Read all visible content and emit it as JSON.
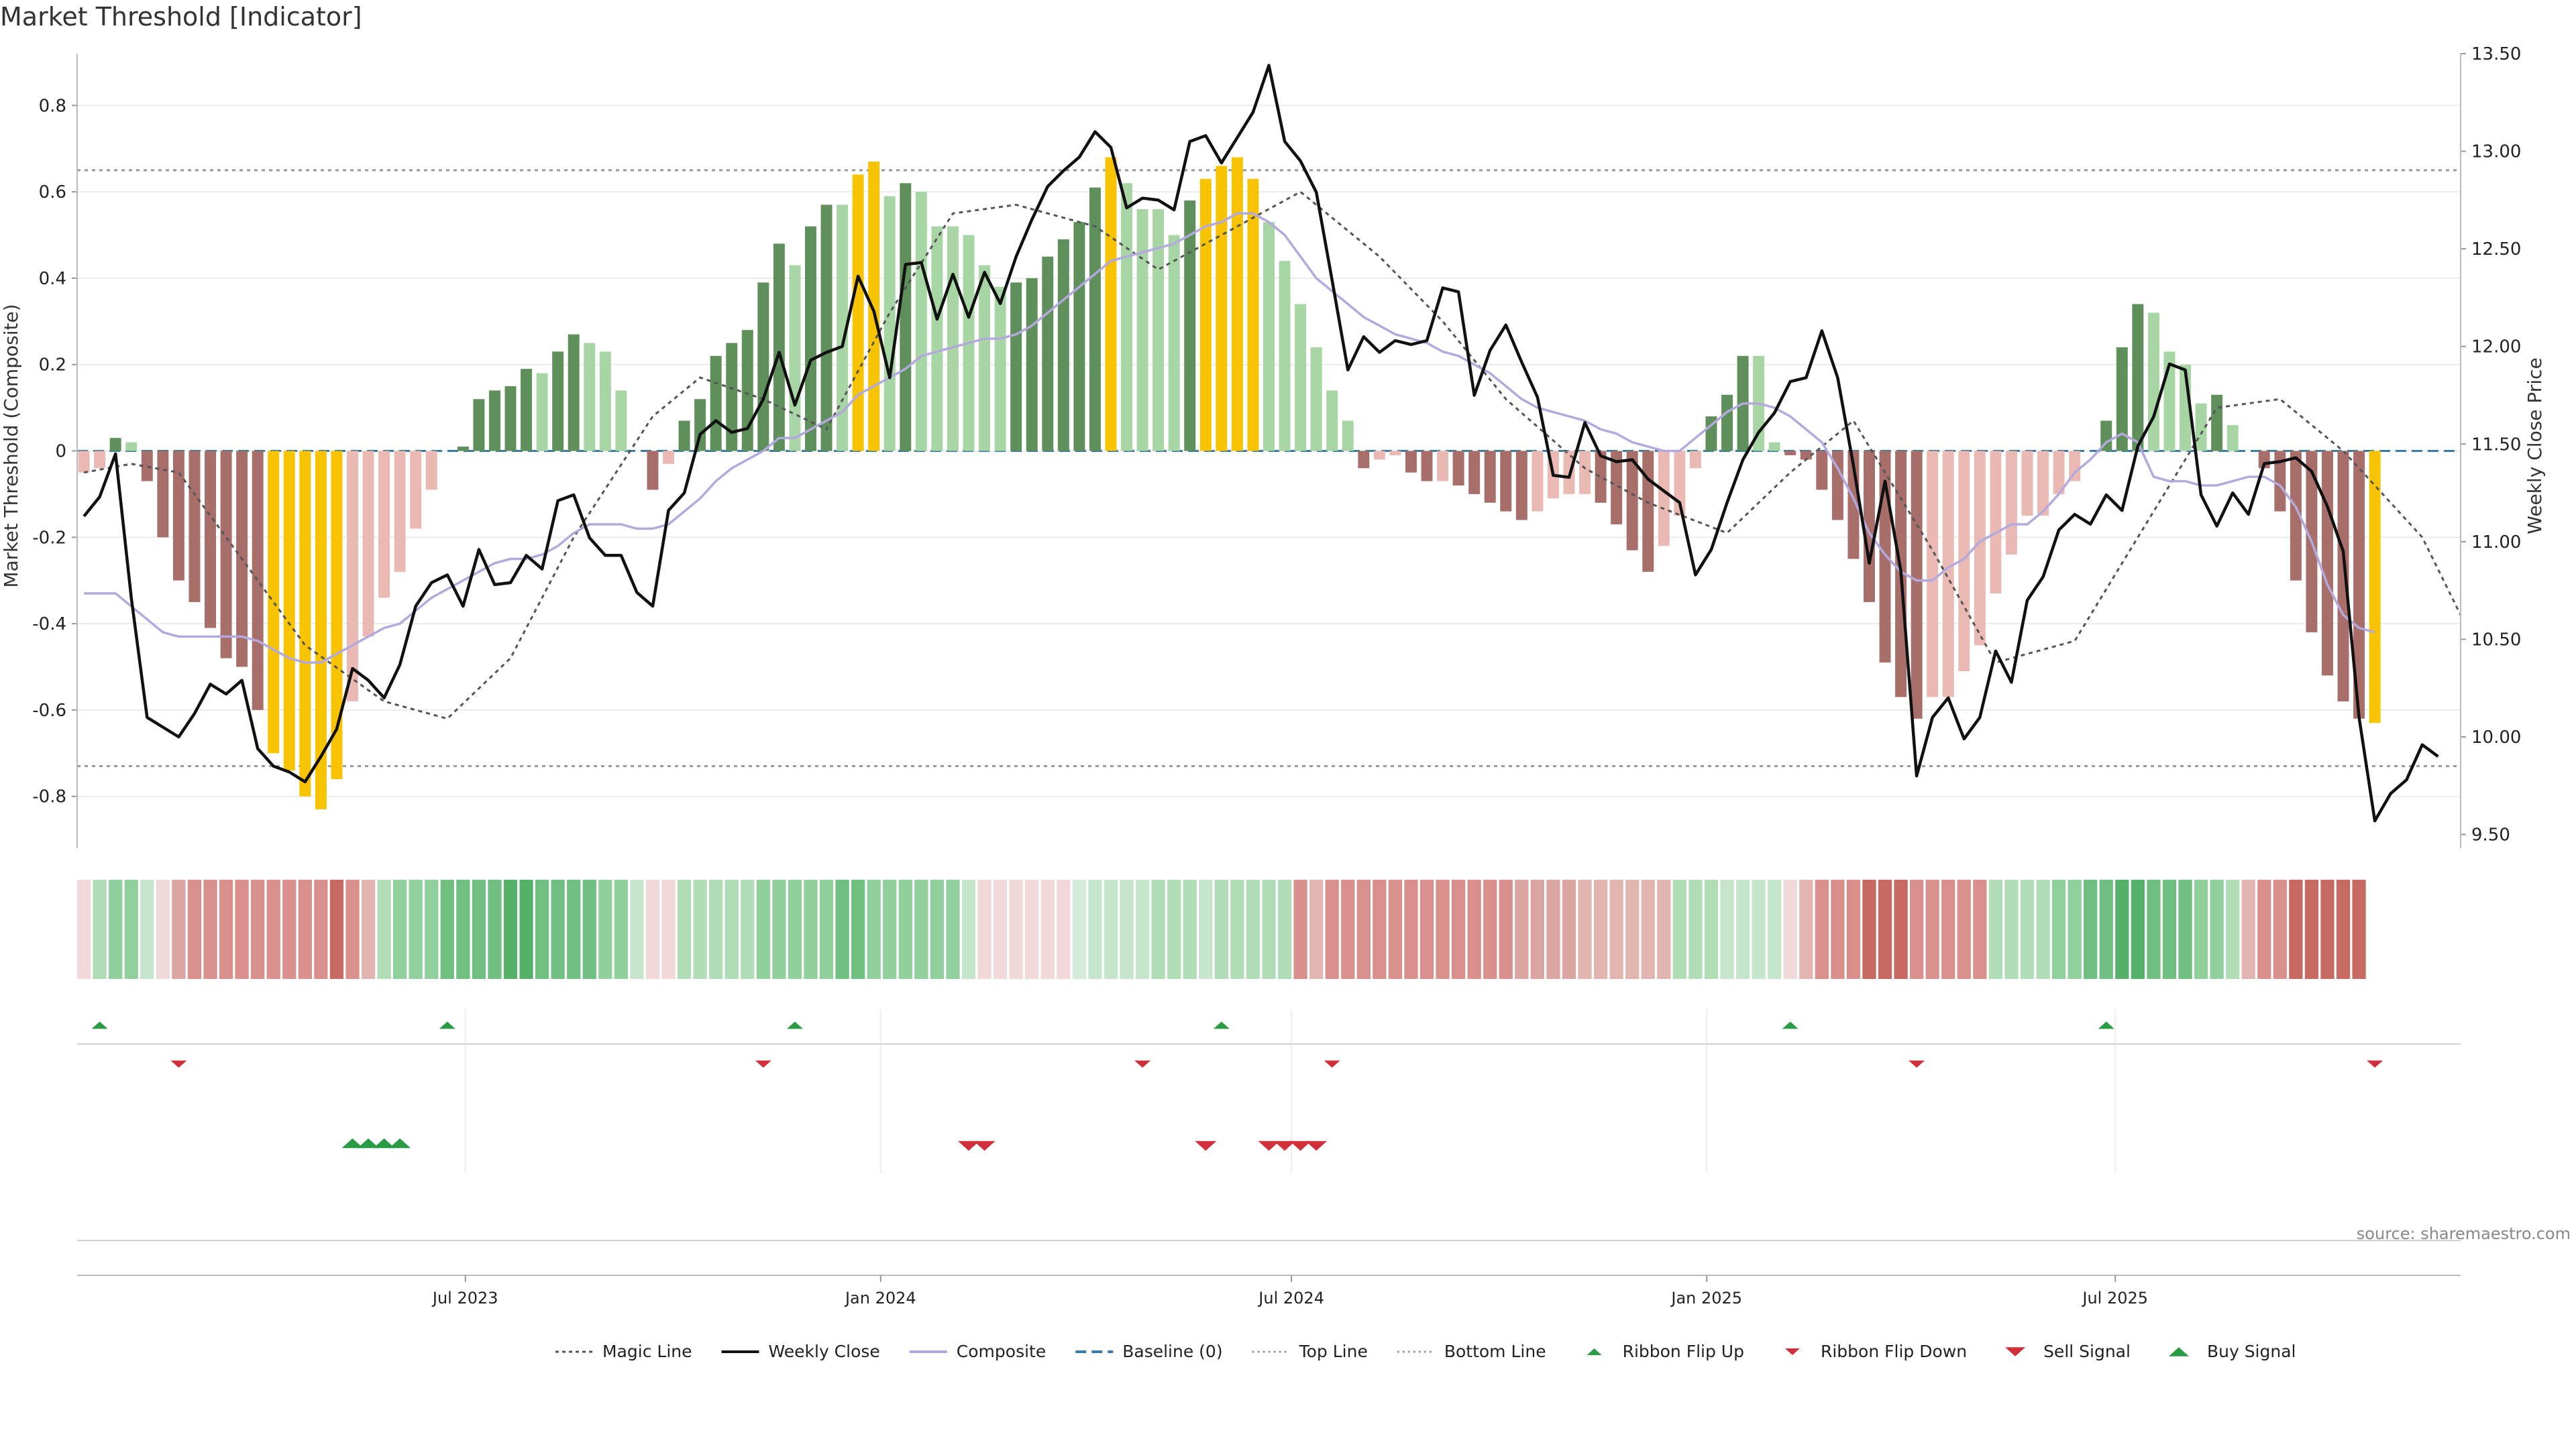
{
  "chart_data": {
    "type": "line",
    "title": "Market Threshold [Indicator]",
    "ylabel": "Market Threshold (Composite)",
    "y2label": "Weekly Close Price",
    "ylim": [
      -0.92,
      0.92
    ],
    "y2lim": [
      9.43,
      13.5
    ],
    "xlim": [
      "2023-01-10",
      "2025-12-01"
    ],
    "left_ticks": [
      {
        "v": 0.8,
        "label": "0.8"
      },
      {
        "v": 0.6,
        "label": "0.6"
      },
      {
        "v": 0.4,
        "label": "0.4"
      },
      {
        "v": 0.2,
        "label": "0.2"
      },
      {
        "v": 0.0,
        "label": "0"
      },
      {
        "v": -0.2,
        "label": "-0.2"
      },
      {
        "v": -0.4,
        "label": "-0.4"
      },
      {
        "v": -0.6,
        "label": "-0.6"
      },
      {
        "v": -0.8,
        "label": "-0.8"
      }
    ],
    "right_ticks": [
      {
        "v": 13.5,
        "label": "13.50"
      },
      {
        "v": 13.0,
        "label": "13.00"
      },
      {
        "v": 12.5,
        "label": "12.50"
      },
      {
        "v": 12.0,
        "label": "12.00"
      },
      {
        "v": 11.5,
        "label": "11.50"
      },
      {
        "v": 11.0,
        "label": "11.00"
      },
      {
        "v": 10.5,
        "label": "10.50"
      },
      {
        "v": 10.0,
        "label": "10.00"
      },
      {
        "v": 9.5,
        "label": "9.50"
      }
    ],
    "x_ticks": [
      {
        "date": "2023-07-01",
        "label": "Jul 2023"
      },
      {
        "date": "2024-01-01",
        "label": "Jan 2024"
      },
      {
        "date": "2024-07-01",
        "label": "Jul 2024"
      },
      {
        "date": "2025-01-01",
        "label": "Jan 2025"
      },
      {
        "date": "2025-07-01",
        "label": "Jul 2025"
      }
    ],
    "top_line": 0.65,
    "bottom_line": -0.73,
    "baseline": 0,
    "start_date": "2023-01-13",
    "bars": [
      -0.05,
      -0.04,
      0.03,
      0.02,
      -0.07,
      -0.2,
      -0.3,
      -0.35,
      -0.41,
      -0.48,
      -0.5,
      -0.6,
      -0.7,
      -0.74,
      -0.8,
      -0.83,
      -0.76,
      -0.58,
      -0.43,
      -0.34,
      -0.28,
      -0.18,
      -0.09,
      0,
      0.01,
      0.12,
      0.14,
      0.15,
      0.19,
      0.18,
      0.23,
      0.27,
      0.25,
      0.23,
      0.14,
      0,
      -0.09,
      -0.03,
      0.07,
      0.12,
      0.22,
      0.25,
      0.28,
      0.39,
      0.48,
      0.43,
      0.52,
      0.57,
      0.57,
      0.64,
      0.67,
      0.59,
      0.62,
      0.6,
      0.52,
      0.52,
      0.5,
      0.43,
      0.38,
      0.39,
      0.4,
      0.45,
      0.49,
      0.53,
      0.61,
      0.68,
      0.62,
      0.56,
      0.56,
      0.5,
      0.58,
      0.63,
      0.66,
      0.68,
      0.63,
      0.53,
      0.44,
      0.34,
      0.24,
      0.14,
      0.07,
      -0.04,
      -0.02,
      -0.01,
      -0.05,
      -0.07,
      -0.07,
      -0.08,
      -0.1,
      -0.12,
      -0.14,
      -0.16,
      -0.14,
      -0.11,
      -0.1,
      -0.1,
      -0.12,
      -0.17,
      -0.23,
      -0.28,
      -0.22,
      -0.15,
      -0.04,
      0.08,
      0.13,
      0.22,
      0.22,
      0.02,
      -0.01,
      -0.02,
      -0.09,
      -0.16,
      -0.25,
      -0.35,
      -0.49,
      -0.57,
      -0.62,
      -0.57,
      -0.57,
      -0.51,
      -0.45,
      -0.33,
      -0.24,
      -0.15,
      -0.15,
      -0.1,
      -0.07,
      0,
      0.07,
      0.24,
      0.34,
      0.32,
      0.23,
      0.2,
      0.11,
      0.13,
      0.06,
      0,
      -0.04,
      -0.14,
      -0.3,
      -0.42,
      -0.52,
      -0.58,
      -0.62,
      -0.63
    ],
    "close": [
      11.13,
      11.23,
      11.45,
      10.71,
      10.1,
      10.05,
      10.0,
      10.12,
      10.27,
      10.22,
      10.29,
      9.94,
      9.85,
      9.82,
      9.77,
      9.9,
      10.04,
      10.35,
      10.29,
      10.2,
      10.37,
      10.67,
      10.79,
      10.83,
      10.67,
      10.96,
      10.78,
      10.79,
      10.93,
      10.86,
      11.21,
      11.24,
      11.02,
      10.93,
      10.93,
      10.74,
      10.67,
      11.16,
      11.25,
      11.55,
      11.62,
      11.56,
      11.58,
      11.73,
      11.97,
      11.7,
      11.93,
      11.97,
      12.0,
      12.36,
      12.18,
      11.84,
      12.42,
      12.43,
      12.14,
      12.37,
      12.15,
      12.38,
      12.22,
      12.46,
      12.65,
      12.82,
      12.9,
      12.97,
      13.1,
      13.02,
      12.71,
      12.76,
      12.75,
      12.7,
      13.05,
      13.08,
      12.94,
      13.07,
      13.2,
      13.44,
      13.05,
      12.95,
      12.79,
      12.34,
      11.88,
      12.05,
      11.97,
      12.03,
      12.01,
      12.03,
      12.3,
      12.28,
      11.75,
      11.98,
      12.11,
      11.92,
      11.74,
      11.34,
      11.33,
      11.61,
      11.44,
      11.41,
      11.42,
      11.32,
      11.26,
      11.2,
      10.83,
      10.96,
      11.2,
      11.42,
      11.56,
      11.66,
      11.82,
      11.84,
      12.08,
      11.84,
      11.39,
      10.89,
      11.31,
      10.85,
      9.8,
      10.1,
      10.2,
      9.99,
      10.1,
      10.44,
      10.28,
      10.7,
      10.82,
      11.06,
      11.14,
      11.09,
      11.24,
      11.16,
      11.49,
      11.64,
      11.91,
      11.88,
      11.24,
      11.08,
      11.25,
      11.14,
      11.4,
      11.41,
      11.43,
      11.36,
      11.18,
      10.95,
      10.1,
      9.57,
      9.71,
      9.78,
      9.96,
      9.9
    ],
    "composite": [
      -0.33,
      -0.33,
      -0.33,
      -0.36,
      -0.39,
      -0.42,
      -0.43,
      -0.43,
      -0.43,
      -0.43,
      -0.43,
      -0.44,
      -0.46,
      -0.48,
      -0.49,
      -0.49,
      -0.47,
      -0.45,
      -0.43,
      -0.41,
      -0.4,
      -0.37,
      -0.34,
      -0.32,
      -0.3,
      -0.28,
      -0.26,
      -0.25,
      -0.25,
      -0.24,
      -0.22,
      -0.19,
      -0.17,
      -0.17,
      -0.17,
      -0.18,
      -0.18,
      -0.17,
      -0.14,
      -0.11,
      -0.07,
      -0.04,
      -0.02,
      0.0,
      0.03,
      0.03,
      0.05,
      0.07,
      0.09,
      0.13,
      0.15,
      0.17,
      0.19,
      0.22,
      0.23,
      0.24,
      0.25,
      0.26,
      0.26,
      0.27,
      0.29,
      0.32,
      0.35,
      0.38,
      0.41,
      0.44,
      0.45,
      0.46,
      0.47,
      0.48,
      0.5,
      0.52,
      0.53,
      0.55,
      0.55,
      0.53,
      0.5,
      0.45,
      0.4,
      0.37,
      0.34,
      0.31,
      0.29,
      0.27,
      0.26,
      0.25,
      0.23,
      0.22,
      0.2,
      0.18,
      0.15,
      0.12,
      0.1,
      0.09,
      0.08,
      0.07,
      0.05,
      0.04,
      0.02,
      0.01,
      0.0,
      0.0,
      0.03,
      0.06,
      0.09,
      0.11,
      0.11,
      0.1,
      0.08,
      0.05,
      0.02,
      -0.04,
      -0.11,
      -0.19,
      -0.24,
      -0.28,
      -0.3,
      -0.3,
      -0.27,
      -0.25,
      -0.21,
      -0.19,
      -0.17,
      -0.17,
      -0.14,
      -0.1,
      -0.05,
      -0.02,
      0.02,
      0.04,
      0.02,
      -0.06,
      -0.07,
      -0.07,
      -0.08,
      -0.08,
      -0.07,
      -0.06,
      -0.06,
      -0.08,
      -0.13,
      -0.21,
      -0.31,
      -0.38,
      -0.41,
      -0.42
    ],
    "magic_line": {
      "x": [
        "2023-01-13",
        "2023-02-03",
        "2023-02-24",
        "2023-03-24",
        "2023-04-21",
        "2023-05-26",
        "2023-06-23",
        "2023-07-21",
        "2023-08-18",
        "2023-09-22",
        "2023-10-13",
        "2023-11-10",
        "2023-12-08",
        "2024-01-05",
        "2024-02-02",
        "2024-03-01",
        "2024-04-05",
        "2024-05-03",
        "2024-06-07",
        "2024-07-05",
        "2024-08-09",
        "2024-09-06",
        "2024-10-04",
        "2024-11-08",
        "2024-12-06",
        "2025-01-10",
        "2025-02-07",
        "2025-03-07",
        "2025-04-11",
        "2025-05-09",
        "2025-06-13",
        "2025-07-11",
        "2025-08-15",
        "2025-09-12",
        "2025-10-10",
        "2025-11-14",
        "2025-12-01"
      ],
      "y": [
        -0.05,
        -0.03,
        -0.05,
        -0.25,
        -0.45,
        -0.58,
        -0.62,
        -0.48,
        -0.2,
        0.08,
        0.17,
        0.12,
        0.05,
        0.32,
        0.55,
        0.57,
        0.52,
        0.42,
        0.52,
        0.6,
        0.45,
        0.3,
        0.12,
        -0.04,
        -0.12,
        -0.19,
        -0.05,
        0.07,
        -0.23,
        -0.49,
        -0.44,
        -0.2,
        0.1,
        0.12,
        0.0,
        -0.2,
        -0.38
      ]
    },
    "ribbon_colors": [
      "#f0d9d8",
      "#b0dcb6",
      "#8fd09c",
      "#8fd09c",
      "#c6e6cb",
      "#f0d9d8",
      "#dba5a2",
      "#d9908c",
      "#d9908c",
      "#d9908c",
      "#d9908c",
      "#d9908c",
      "#d9908c",
      "#d9908c",
      "#d9908c",
      "#d9908c",
      "#c86a64",
      "#d9908c",
      "#e3b5b1",
      "#b0dcb6",
      "#8fd09c",
      "#8fd09c",
      "#8fd09c",
      "#6fc080",
      "#6fc080",
      "#6fc080",
      "#6fc080",
      "#55b168",
      "#55b168",
      "#6fc080",
      "#6fc080",
      "#6fc080",
      "#6fc080",
      "#8fd09c",
      "#8fd09c",
      "#c6e6cb",
      "#f0d9d8",
      "#f0d9d8",
      "#b0dcb6",
      "#b0dcb6",
      "#b0dcb6",
      "#b0dcb6",
      "#b0dcb6",
      "#8fd09c",
      "#8fd09c",
      "#8fd09c",
      "#8fd09c",
      "#8fd09c",
      "#6fc080",
      "#6fc080",
      "#8fd09c",
      "#8fd09c",
      "#8fd09c",
      "#8fd09c",
      "#8fd09c",
      "#8fd09c",
      "#c6e6cb",
      "#f0d9d8",
      "#f0d9d8",
      "#f0d9d8",
      "#f0d9d8",
      "#f0d9d8",
      "#f0d9d8",
      "#d4ecd7",
      "#c6e6cb",
      "#c6e6cb",
      "#c6e6cb",
      "#c6e6cb",
      "#b0dcb6",
      "#b0dcb6",
      "#b0dcb6",
      "#c6e6cb",
      "#b0dcb6",
      "#b0dcb6",
      "#b0dcb6",
      "#b0dcb6",
      "#b0dcb6",
      "#d9908c",
      "#e3b5b1",
      "#d9908c",
      "#d9908c",
      "#d9908c",
      "#d9908c",
      "#d9908c",
      "#d9908c",
      "#d9908c",
      "#d9908c",
      "#d9908c",
      "#d9908c",
      "#d9908c",
      "#d9908c",
      "#dba5a2",
      "#dba5a2",
      "#dba5a2",
      "#dba5a2",
      "#e3b5b1",
      "#e3b5b1",
      "#e3b5b1",
      "#e3b5b1",
      "#e3b5b1",
      "#e3b5b1",
      "#b0dcb6",
      "#b0dcb6",
      "#b0dcb6",
      "#c6e6cb",
      "#c6e6cb",
      "#c6e6cb",
      "#c6e6cb",
      "#f0d9d8",
      "#e3b5b1",
      "#d9908c",
      "#d9908c",
      "#d9908c",
      "#c86a64",
      "#c86a64",
      "#c86a64",
      "#d9908c",
      "#d9908c",
      "#d9908c",
      "#d9908c",
      "#d9908c",
      "#b0dcb6",
      "#b0dcb6",
      "#b0dcb6",
      "#b0dcb6",
      "#8fd09c",
      "#8fd09c",
      "#6fc080",
      "#6fc080",
      "#55b168",
      "#55b168",
      "#6fc080",
      "#6fc080",
      "#6fc080",
      "#8fd09c",
      "#8fd09c",
      "#b0dcb6",
      "#e3b5b1",
      "#d9908c",
      "#d9908c",
      "#c86a64",
      "#c86a64",
      "#c86a64",
      "#c86a64",
      "#c86a64"
    ],
    "ribbon_flip_up": [
      "2023-01-20",
      "2023-06-23",
      "2023-11-24",
      "2024-05-31",
      "2025-02-07",
      "2025-06-27"
    ],
    "ribbon_flip_down": [
      "2023-02-24",
      "2023-11-10",
      "2024-04-26",
      "2024-07-19",
      "2025-04-04",
      "2025-10-24"
    ],
    "buy_signals": [
      "2023-05-12",
      "2023-05-19",
      "2023-05-26",
      "2023-06-02"
    ],
    "sell_signals": [
      "2024-02-09",
      "2024-02-16",
      "2024-05-24",
      "2024-06-21",
      "2024-06-28",
      "2024-07-05",
      "2024-07-12"
    ],
    "legend": [
      {
        "label": "Magic Line",
        "kind": "dotted",
        "color": "#555555"
      },
      {
        "label": "Weekly Close",
        "kind": "solid",
        "color": "#111111"
      },
      {
        "label": "Composite",
        "kind": "solid",
        "color": "#b3a9dd"
      },
      {
        "label": "Baseline (0)",
        "kind": "dashed",
        "color": "#3a7ca5"
      },
      {
        "label": "Top Line",
        "kind": "fine-dotted",
        "color": "#999999"
      },
      {
        "label": "Bottom Line",
        "kind": "fine-dotted",
        "color": "#999999"
      },
      {
        "label": "Ribbon Flip Up",
        "kind": "tri-up-small",
        "color": "#2a9a44"
      },
      {
        "label": "Ribbon Flip Down",
        "kind": "tri-down-small",
        "color": "#d1303a"
      },
      {
        "label": "Sell Signal",
        "kind": "tri-down",
        "color": "#d1303a"
      },
      {
        "label": "Buy Signal",
        "kind": "tri-up",
        "color": "#2a9a44"
      }
    ],
    "legend_position": "bottom-center",
    "grid": true
  },
  "colors": {
    "bar_dark_green": "#5f8f5a",
    "bar_light_green": "#a8d5a4",
    "bar_dark_red": "#a86f6a",
    "bar_light_red": "#ebb9b3",
    "bar_extreme": "#f8c300"
  },
  "source": "source: sharemaestro.com"
}
